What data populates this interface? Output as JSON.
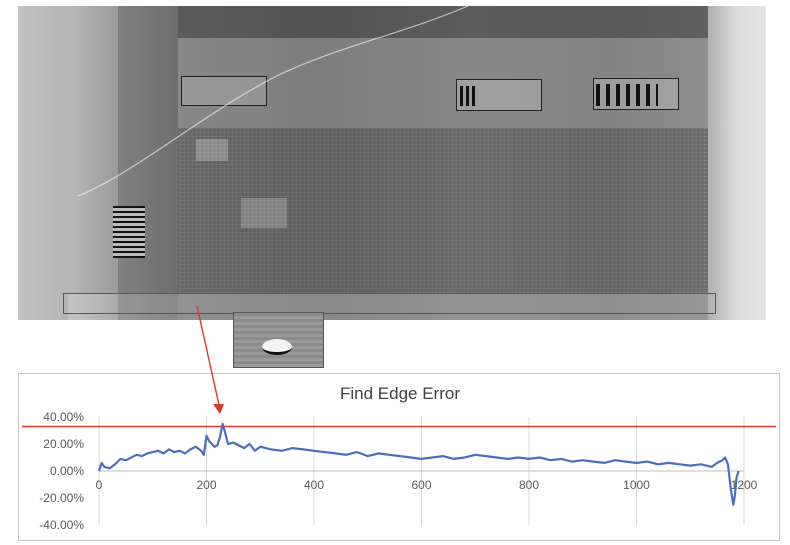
{
  "chart_data": {
    "type": "line",
    "title": "Find Edge Error",
    "xlabel": "",
    "ylabel": "",
    "xlim": [
      0,
      1200
    ],
    "ylim": [
      -0.4,
      0.4
    ],
    "x_ticks": [
      0,
      200,
      400,
      600,
      800,
      1000,
      1200
    ],
    "x_tick_labels": [
      "0",
      "200",
      "400",
      "600",
      "800",
      "1000",
      "1200"
    ],
    "y_ticks": [
      -0.4,
      -0.2,
      0.0,
      0.2,
      0.4
    ],
    "y_tick_labels": [
      "-40.00%",
      "-20.00%",
      "0.00%",
      "20.00%",
      "40.00%"
    ],
    "grid": "vertical",
    "threshold": 0.33,
    "threshold_color": "#e03a2a",
    "series_color": "#4a6fbd",
    "series": [
      {
        "name": "",
        "x": [
          0,
          5,
          10,
          20,
          30,
          40,
          50,
          60,
          70,
          80,
          90,
          100,
          110,
          120,
          130,
          140,
          150,
          160,
          170,
          180,
          190,
          195,
          200,
          205,
          210,
          215,
          220,
          225,
          230,
          235,
          240,
          250,
          260,
          270,
          280,
          290,
          300,
          320,
          340,
          360,
          380,
          400,
          420,
          440,
          460,
          480,
          500,
          520,
          540,
          560,
          580,
          600,
          620,
          640,
          660,
          680,
          700,
          720,
          740,
          760,
          780,
          800,
          820,
          840,
          860,
          880,
          900,
          920,
          940,
          960,
          980,
          1000,
          1020,
          1040,
          1060,
          1080,
          1100,
          1120,
          1140,
          1150,
          1160,
          1165,
          1170,
          1175,
          1180,
          1183,
          1186,
          1190
        ],
        "y": [
          0.0,
          0.06,
          0.03,
          0.02,
          0.05,
          0.09,
          0.08,
          0.1,
          0.12,
          0.11,
          0.13,
          0.14,
          0.15,
          0.13,
          0.16,
          0.14,
          0.15,
          0.13,
          0.16,
          0.18,
          0.15,
          0.12,
          0.26,
          0.22,
          0.2,
          0.18,
          0.19,
          0.25,
          0.35,
          0.28,
          0.2,
          0.21,
          0.19,
          0.17,
          0.2,
          0.15,
          0.18,
          0.16,
          0.15,
          0.17,
          0.16,
          0.15,
          0.14,
          0.13,
          0.12,
          0.14,
          0.11,
          0.13,
          0.12,
          0.11,
          0.1,
          0.09,
          0.1,
          0.11,
          0.09,
          0.1,
          0.12,
          0.11,
          0.1,
          0.09,
          0.1,
          0.09,
          0.1,
          0.08,
          0.09,
          0.07,
          0.08,
          0.07,
          0.06,
          0.08,
          0.07,
          0.06,
          0.07,
          0.05,
          0.06,
          0.05,
          0.04,
          0.05,
          0.03,
          0.06,
          0.08,
          0.1,
          0.05,
          -0.12,
          -0.25,
          -0.18,
          -0.05,
          0.0
        ]
      }
    ]
  }
}
